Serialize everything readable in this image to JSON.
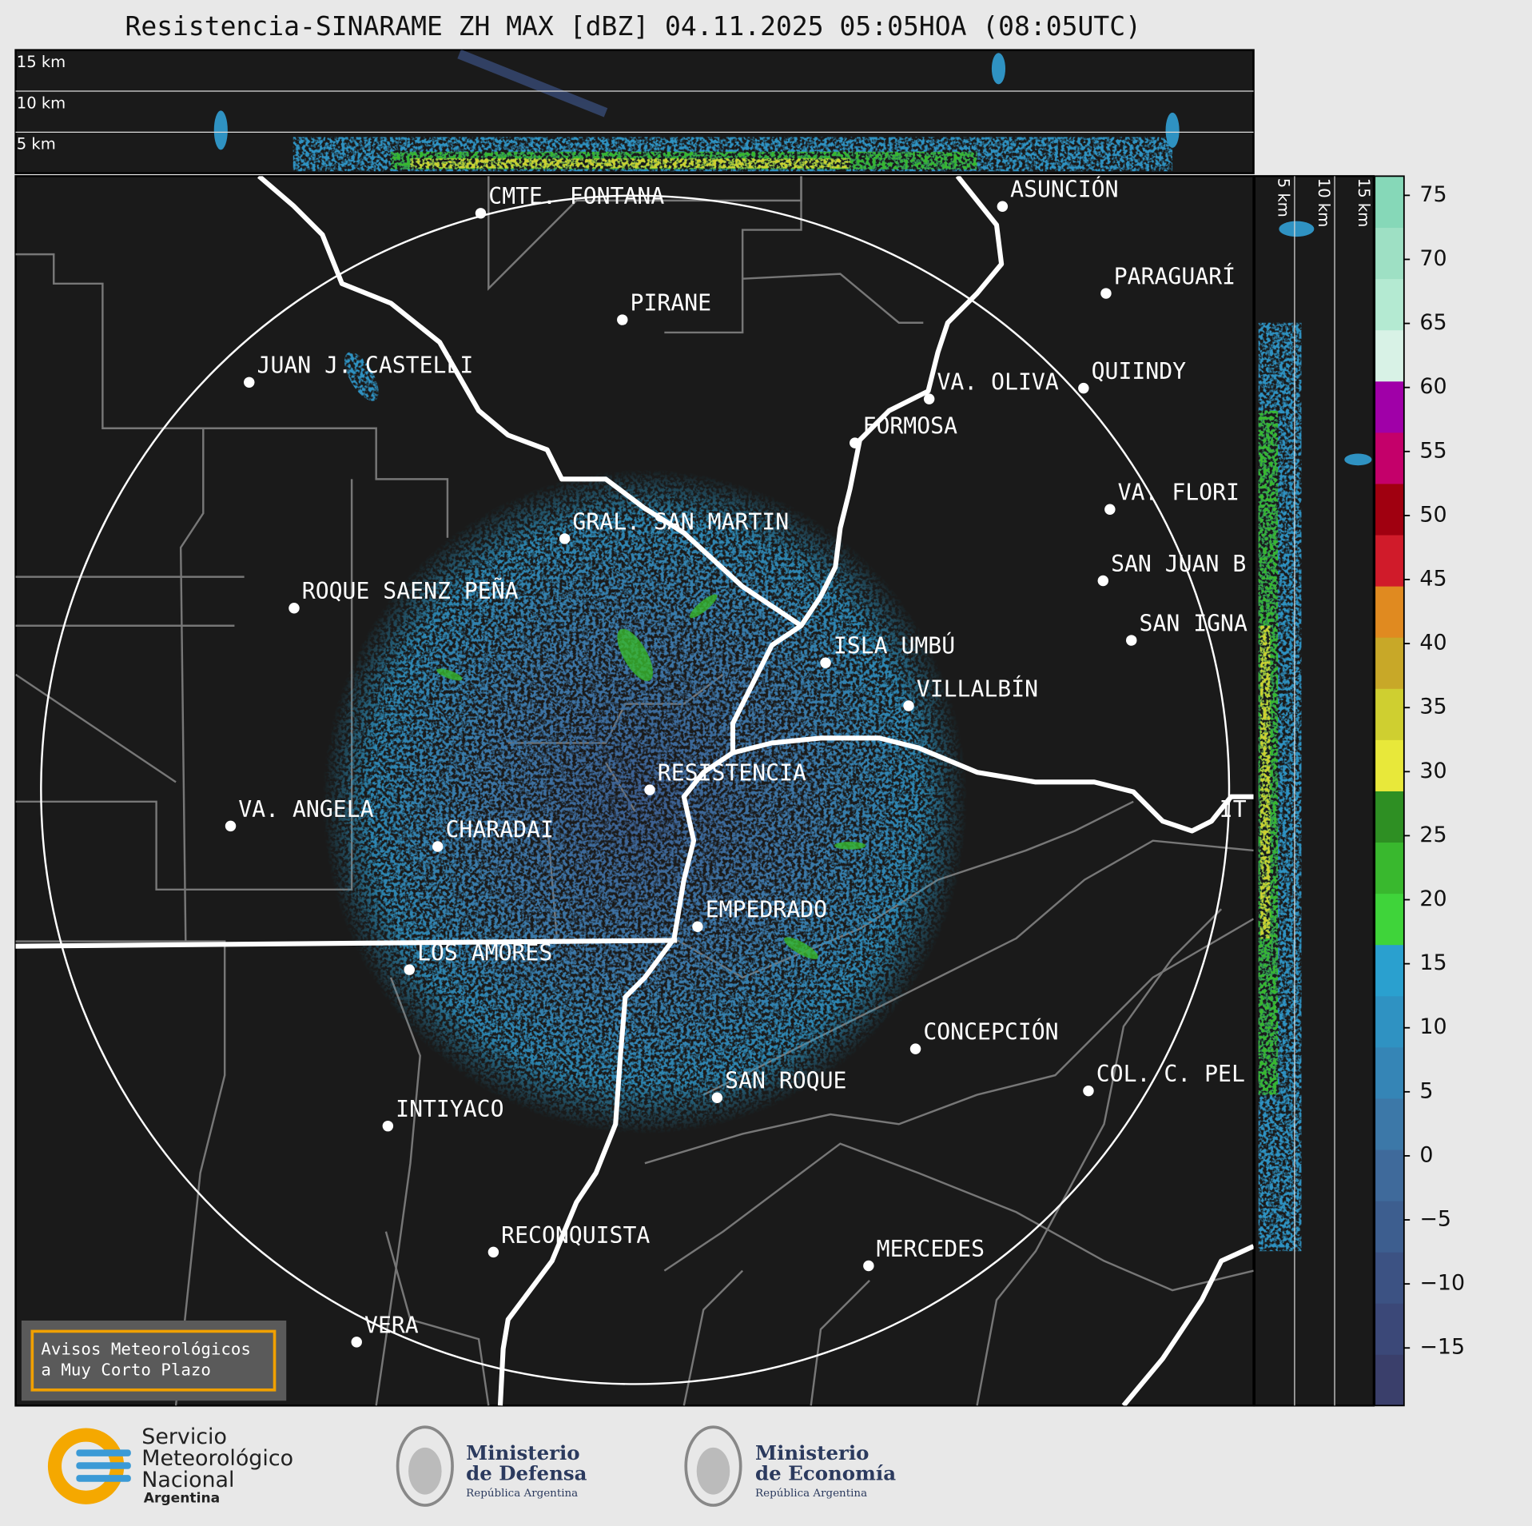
{
  "title": "Resistencia-SINARAME ZH MAX [dBZ] 04.11.2025 05:05HOA (08:05UTC)",
  "cross_section_labels": [
    "15 km",
    "10 km",
    "5 km"
  ],
  "cities": [
    "CMTE. FONTANA",
    "PIRANE",
    "JUAN J. CASTELLI",
    "ASUNCIÓN",
    "PARAGUARÍ",
    "VA. OLIVA",
    "QUIINDY",
    "FORMOSA",
    "VA. FLORI",
    "GRAL. SAN MARTIN",
    "ROQUE SAENZ PEÑA",
    "SAN JUAN B",
    "SAN IGNA",
    "ISLA UMBÚ",
    "VILLALBÍN",
    "RESISTENCIA",
    "IT",
    "VA. ANGELA",
    "CHARADAI",
    "EMPEDRADO",
    "LOS AMORES",
    "CONCEPCIÓN",
    "SAN ROQUE",
    "COL. C. PEL",
    "INTIYACO",
    "RECONQUISTA",
    "MERCEDES",
    "VERA"
  ],
  "colorbar": {
    "lim": [
      -19.5,
      76.5
    ],
    "ticks": [
      75,
      70,
      65,
      60,
      55,
      50,
      45,
      40,
      35,
      30,
      25,
      20,
      15,
      10,
      5,
      0,
      {
        "value": -5,
        "label": "−5"
      },
      {
        "value": -10,
        "label": "−10"
      },
      {
        "value": -15,
        "label": "−15"
      }
    ],
    "colors": [
      "#3a3f6b",
      "#3b4878",
      "#3c5283",
      "#3d5e8f",
      "#3f6a9b",
      "#3c78a8",
      "#3585b6",
      "#2f92c2",
      "#2aa0cf",
      "#3fd43a",
      "#39b82e",
      "#2e8f23",
      "#e8e83a",
      "#cfcf30",
      "#c8a828",
      "#e08a20",
      "#d01b2a",
      "#a00010",
      "#c4006a",
      "#a000a8",
      "#d8f2e6",
      "#b4ead2",
      "#9ee0c4",
      "#86d8b8"
    ]
  },
  "notice": [
    "Avisos Meteorológicos",
    "a Muy Corto Plazo"
  ],
  "logos": [
    [
      "Servicio",
      "Meteorológico",
      "Nacional",
      "Argentina"
    ],
    [
      "Ministerio",
      "de Defensa",
      "República Argentina"
    ],
    [
      "Ministerio",
      "de Economía",
      "República Argentina"
    ]
  ]
}
